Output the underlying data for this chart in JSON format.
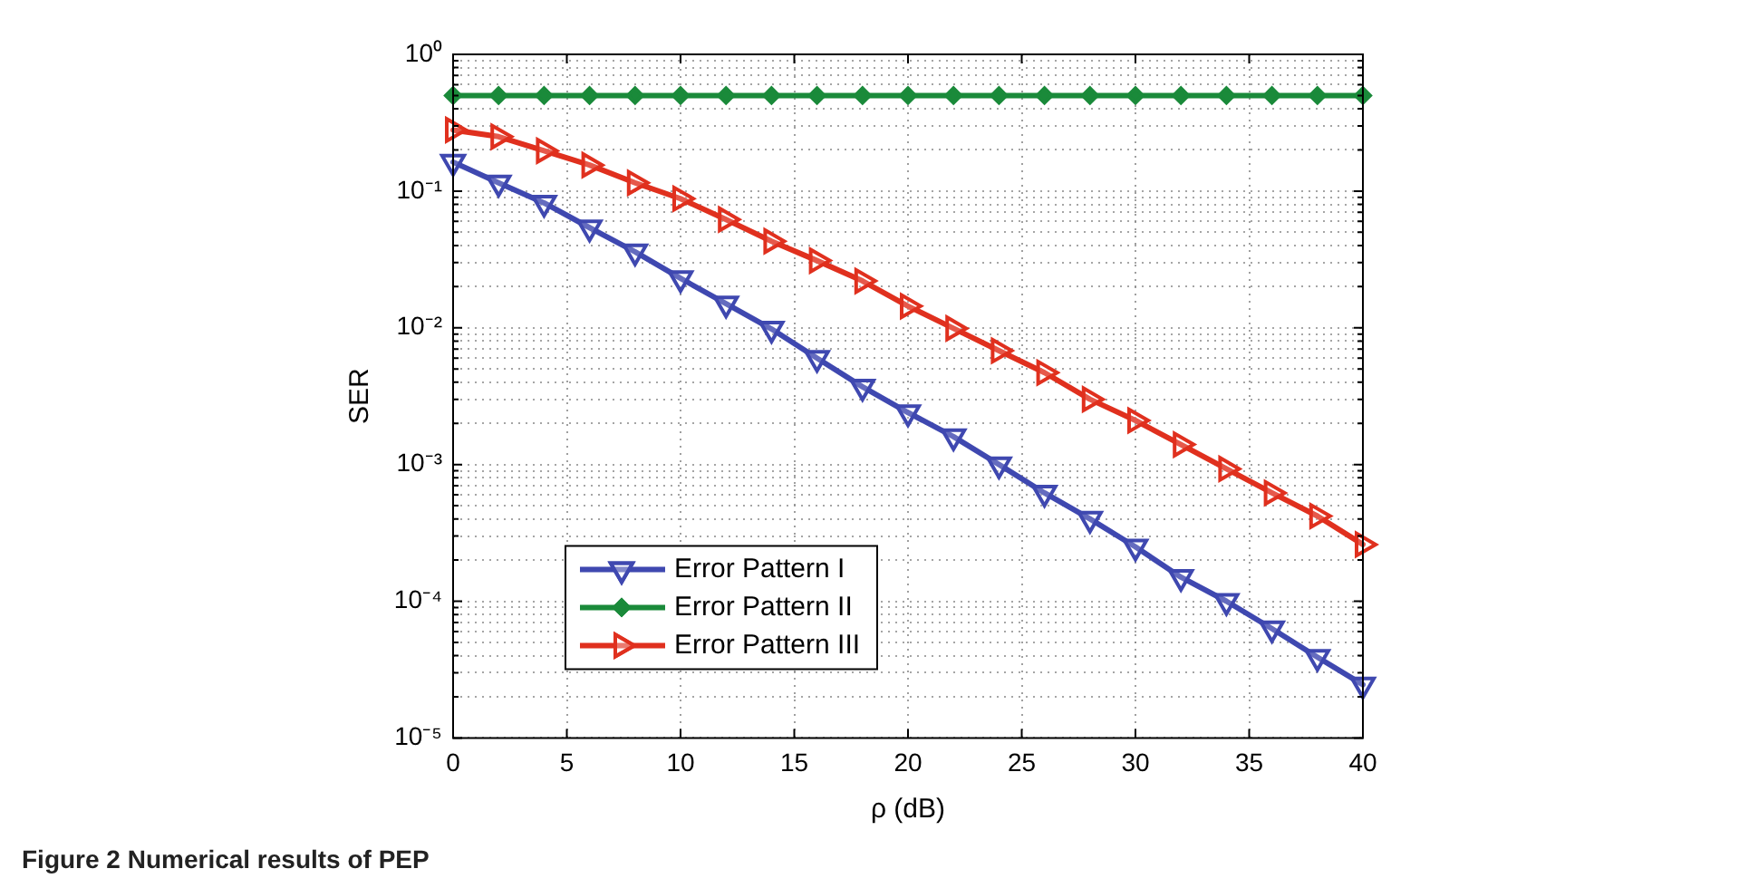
{
  "chart_data": {
    "type": "line",
    "xlabel": "ρ (dB)",
    "ylabel": "SER",
    "x": [
      0,
      2,
      4,
      6,
      8,
      10,
      12,
      14,
      16,
      18,
      20,
      22,
      24,
      26,
      28,
      30,
      32,
      34,
      36,
      38,
      40
    ],
    "series": [
      {
        "name": "Error Pattern I",
        "color": "#3f48b0",
        "marker": "triangle",
        "values": [
          0.163,
          0.115,
          0.082,
          0.054,
          0.036,
          0.023,
          0.015,
          0.0098,
          0.006,
          0.0037,
          0.0024,
          0.0016,
          0.001,
          0.00062,
          0.0004,
          0.00025,
          0.00015,
          0.0001,
          6.3e-05,
          3.9e-05,
          2.45e-05
        ]
      },
      {
        "name": "Error Pattern II",
        "color": "#1a8a3a",
        "marker": "diamond",
        "values": [
          0.5,
          0.5,
          0.5,
          0.5,
          0.5,
          0.5,
          0.5,
          0.5,
          0.5,
          0.5,
          0.5,
          0.5,
          0.5,
          0.5,
          0.5,
          0.5,
          0.5,
          0.5,
          0.5,
          0.5,
          0.5
        ]
      },
      {
        "name": "Error Pattern III",
        "color": "#e0301e",
        "marker": "triangle",
        "values": [
          0.28,
          0.25,
          0.197,
          0.155,
          0.115,
          0.088,
          0.062,
          0.043,
          0.031,
          0.022,
          0.0144,
          0.0099,
          0.0068,
          0.0047,
          0.003,
          0.0021,
          0.0014,
          0.00093,
          0.00062,
          0.00042,
          0.00026
        ]
      }
    ],
    "xlim": [
      0,
      40
    ],
    "xticks": [
      0,
      5,
      10,
      15,
      20,
      25,
      30,
      35,
      40
    ],
    "log": "y",
    "ylim": [
      1e-05,
      1
    ],
    "yticks": [
      {
        "value": 1e-05,
        "label": "10⁻⁵"
      },
      {
        "value": 2e-05,
        "label": null
      },
      {
        "value": 3e-05,
        "label": null
      },
      {
        "value": 4e-05,
        "label": null
      },
      {
        "value": 5e-05,
        "label": null
      },
      {
        "value": 6e-05,
        "label": null
      },
      {
        "value": 7e-05,
        "label": null
      },
      {
        "value": 8e-05,
        "label": null
      },
      {
        "value": 9e-05,
        "label": null
      },
      {
        "value": 0.0001,
        "label": "10⁻⁴"
      },
      {
        "value": 0.0002,
        "label": null
      },
      {
        "value": 0.0003,
        "label": null
      },
      {
        "value": 0.0004,
        "label": null
      },
      {
        "value": 0.0005,
        "label": null
      },
      {
        "value": 0.0006,
        "label": null
      },
      {
        "value": 0.0007,
        "label": null
      },
      {
        "value": 0.0008,
        "label": null
      },
      {
        "value": 0.0009,
        "label": null
      },
      {
        "value": 0.001,
        "label": "10⁻³"
      },
      {
        "value": 0.002,
        "label": null
      },
      {
        "value": 0.003,
        "label": null
      },
      {
        "value": 0.004,
        "label": null
      },
      {
        "value": 0.005,
        "label": null
      },
      {
        "value": 0.006,
        "label": null
      },
      {
        "value": 0.007,
        "label": null
      },
      {
        "value": 0.008,
        "label": null
      },
      {
        "value": 0.009,
        "label": null
      },
      {
        "value": 0.01,
        "label": "10⁻²"
      },
      {
        "value": 0.02,
        "label": null
      },
      {
        "value": 0.03,
        "label": null
      },
      {
        "value": 0.04,
        "label": null
      },
      {
        "value": 0.05,
        "label": null
      },
      {
        "value": 0.06,
        "label": null
      },
      {
        "value": 0.07,
        "label": null
      },
      {
        "value": 0.08,
        "label": null
      },
      {
        "value": 0.09,
        "label": null
      },
      {
        "value": 0.1,
        "label": "10⁻¹"
      },
      {
        "value": 0.2,
        "label": null
      },
      {
        "value": 0.3,
        "label": null
      },
      {
        "value": 0.4,
        "label": null
      },
      {
        "value": 0.5,
        "label": null
      },
      {
        "value": 0.6,
        "label": null
      },
      {
        "value": 0.7,
        "label": null
      },
      {
        "value": 0.8,
        "label": null
      },
      {
        "value": 0.9,
        "label": null
      },
      {
        "value": 1,
        "label": "10⁰"
      }
    ],
    "grid": true,
    "legend": "bottom left",
    "line_style": "solid",
    "annotations": [
      "Figure 2 Numerical results of PEP"
    ]
  }
}
